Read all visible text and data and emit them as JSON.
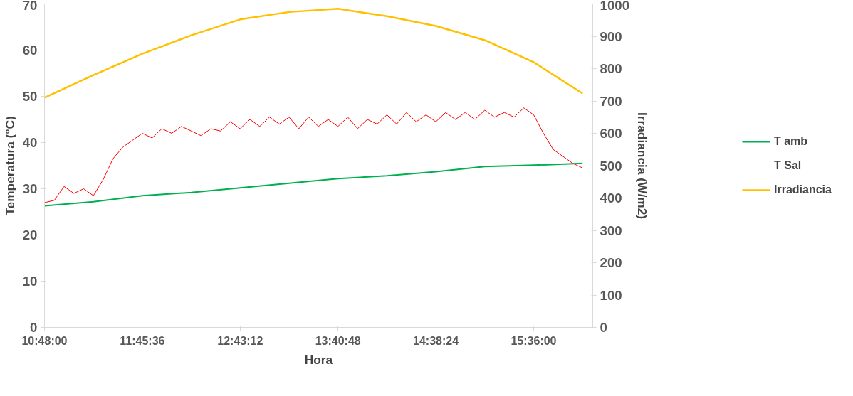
{
  "chart_data": {
    "type": "line",
    "xlabel": "Hora",
    "ylabel": "Temperatura (°C)",
    "y2label": "Irradiancia (W/m2)",
    "xlim": [
      10.8,
      16.18
    ],
    "xticks": [
      {
        "value": 10.8,
        "label": "10:48:00"
      },
      {
        "value": 11.76,
        "label": "11:45:36"
      },
      {
        "value": 12.72,
        "label": "12:43:12"
      },
      {
        "value": 13.68,
        "label": "13:40:48"
      },
      {
        "value": 14.64,
        "label": "14:38:24"
      },
      {
        "value": 15.6,
        "label": "15:36:00"
      }
    ],
    "ylim": [
      0,
      70
    ],
    "yticks": [
      0,
      10,
      20,
      30,
      40,
      50,
      60,
      70
    ],
    "y2lim": [
      0,
      1000
    ],
    "y2ticks": [
      0,
      100,
      200,
      300,
      400,
      500,
      600,
      700,
      800,
      900,
      1000
    ],
    "grid": false,
    "legend": "right",
    "marker": "none",
    "line_style": "solid",
    "series": [
      {
        "name": "T amb",
        "color": "#00b050",
        "x": [
          10.8,
          11.28,
          11.76,
          12.24,
          12.72,
          13.2,
          13.68,
          14.16,
          14.64,
          15.12,
          15.6,
          16.08
        ],
        "values": [
          26.3,
          27.2,
          28.5,
          29.2,
          30.2,
          31.2,
          32.2,
          32.8,
          33.7,
          34.8,
          35.1,
          35.5
        ]
      },
      {
        "name": "T Sal",
        "color": "#ff0000",
        "x": [
          10.8,
          10.896,
          10.992,
          11.088,
          11.184,
          11.28,
          11.376,
          11.472,
          11.568,
          11.664,
          11.76,
          11.856,
          11.952,
          12.048,
          12.144,
          12.24,
          12.336,
          12.432,
          12.528,
          12.624,
          12.72,
          12.816,
          12.912,
          13.008,
          13.104,
          13.2,
          13.296,
          13.392,
          13.488,
          13.584,
          13.68,
          13.776,
          13.872,
          13.968,
          14.064,
          14.16,
          14.256,
          14.352,
          14.448,
          14.544,
          14.64,
          14.736,
          14.832,
          14.928,
          15.024,
          15.12,
          15.216,
          15.312,
          15.408,
          15.504,
          15.6,
          15.696,
          15.792,
          15.888,
          15.984,
          16.08
        ],
        "values": [
          27,
          27.5,
          30.5,
          29,
          30,
          28.5,
          32,
          36.5,
          39,
          40.5,
          42,
          41,
          43,
          42,
          43.5,
          42.5,
          41.5,
          43,
          42.5,
          44.5,
          43,
          45,
          43.5,
          45.5,
          44,
          45.5,
          43,
          45.5,
          43.5,
          45,
          43.5,
          45.5,
          43,
          45,
          44,
          46,
          44,
          46.5,
          44.5,
          46,
          44.5,
          46.5,
          45,
          46.5,
          45,
          47,
          45.5,
          46.5,
          45.5,
          47.5,
          46,
          42,
          38.5,
          37,
          35.5,
          34.5
        ]
      },
      {
        "name": "Irradiancia",
        "color": "#ffc000",
        "axis": "y2",
        "x": [
          10.8,
          11.28,
          11.76,
          12.24,
          12.72,
          13.2,
          13.68,
          14.16,
          14.64,
          15.12,
          15.6,
          16.08
        ],
        "values": [
          710,
          780,
          846,
          903,
          952,
          975,
          985,
          962,
          932,
          888,
          820,
          723
        ]
      }
    ]
  }
}
